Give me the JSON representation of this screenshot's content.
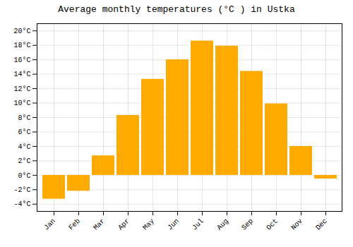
{
  "chart_data": {
    "type": "bar",
    "title": "Average monthly temperatures (°C ) in Ustka",
    "categories": [
      "Jan",
      "Feb",
      "Mar",
      "Apr",
      "May",
      "Jun",
      "Jul",
      "Aug",
      "Sep",
      "Oct",
      "Nov",
      "Dec"
    ],
    "values": [
      -3.3,
      -2.2,
      2.7,
      8.3,
      13.3,
      16.0,
      18.6,
      17.9,
      14.4,
      9.9,
      4.0,
      -0.5
    ],
    "color": "#FFAA00",
    "ylim": [
      -5,
      21
    ],
    "yticks": [
      {
        "value": -4,
        "label": "-4°C"
      },
      {
        "value": -2,
        "label": "-2°C"
      },
      {
        "value": 0,
        "label": "0°C"
      },
      {
        "value": 2,
        "label": "2°C"
      },
      {
        "value": 4,
        "label": "4°C"
      },
      {
        "value": 6,
        "label": "6°C"
      },
      {
        "value": 8,
        "label": "8°C"
      },
      {
        "value": 10,
        "label": "10°C"
      },
      {
        "value": 12,
        "label": "12°C"
      },
      {
        "value": 14,
        "label": "14°C"
      },
      {
        "value": 16,
        "label": "16°C"
      },
      {
        "value": 18,
        "label": "18°C"
      },
      {
        "value": 20,
        "label": "20°C"
      }
    ],
    "grid": true
  }
}
